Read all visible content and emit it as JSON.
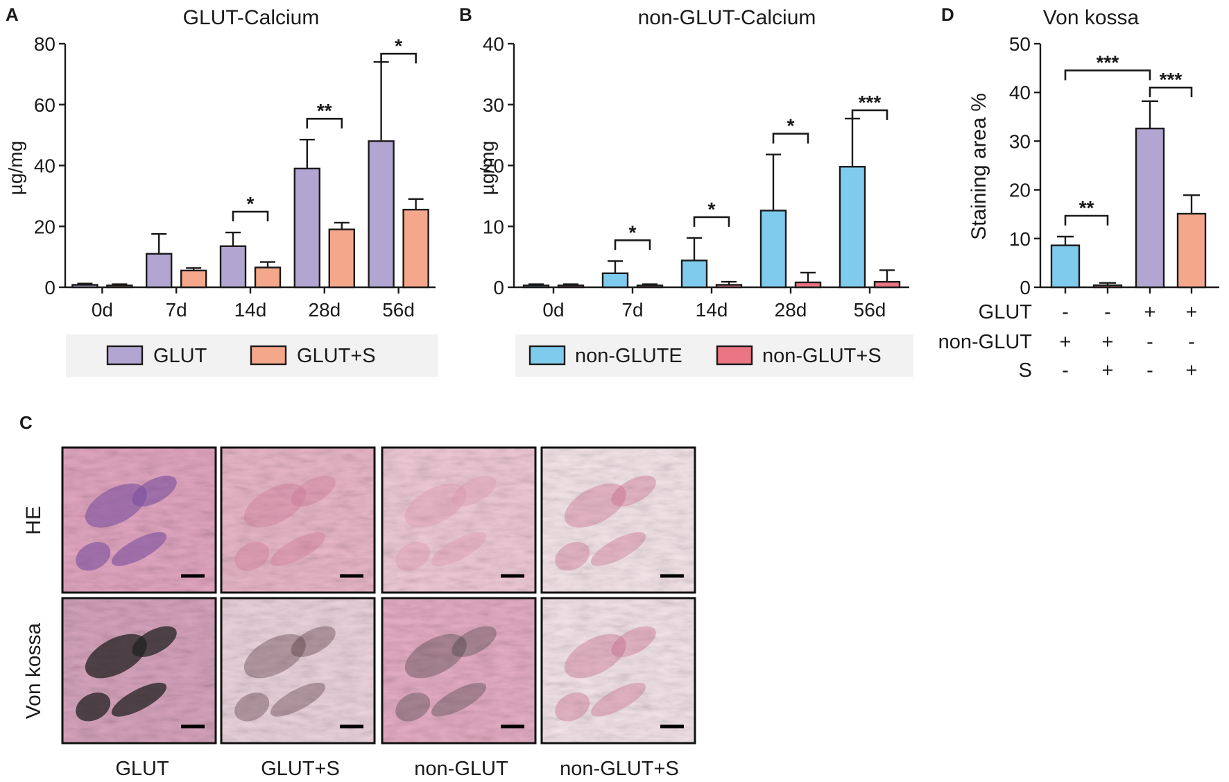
{
  "panel_letters": {
    "a": "A",
    "b": "B",
    "c": "C",
    "d": "D"
  },
  "chart_data": [
    {
      "id": "A",
      "type": "bar",
      "title": "GLUT-Calcium",
      "ylabel": "µg/mg",
      "ylim": [
        0,
        80
      ],
      "yticks": [
        "0",
        "20",
        "40",
        "60",
        "80"
      ],
      "categories": [
        "0d",
        "7d",
        "14d",
        "28d",
        "56d"
      ],
      "series": [
        {
          "name": "GLUT",
          "color": "#b3a5d1",
          "values": [
            0.8,
            11,
            13.5,
            39,
            48
          ],
          "errors": [
            0.4,
            6.5,
            4.5,
            9.5,
            26
          ]
        },
        {
          "name": "GLUT+S",
          "color": "#f4a78b",
          "values": [
            0.6,
            5.5,
            6.5,
            19,
            25.5
          ],
          "errors": [
            0.4,
            0.8,
            1.8,
            2.2,
            3.5
          ]
        }
      ],
      "significance": [
        {
          "category": "14d",
          "label": "*"
        },
        {
          "category": "28d",
          "label": "**"
        },
        {
          "category": "56d",
          "label": "*"
        }
      ],
      "legend": {
        "position": "bottom",
        "items": [
          "GLUT",
          "GLUT+S"
        ]
      }
    },
    {
      "id": "B",
      "type": "bar",
      "title": "non-GLUT-Calcium",
      "ylabel": "µg/mg",
      "ylim": [
        0,
        40
      ],
      "yticks": [
        "0",
        "10",
        "20",
        "30",
        "40"
      ],
      "categories": [
        "0d",
        "7d",
        "14d",
        "28d",
        "56d"
      ],
      "series": [
        {
          "name": "non-GLUTE",
          "color": "#7ecbee",
          "values": [
            0.3,
            2.3,
            4.4,
            12.6,
            19.8
          ],
          "errors": [
            0.2,
            2.0,
            3.7,
            9.2,
            7.9
          ]
        },
        {
          "name": "non-GLUT+S",
          "color": "#ea7583",
          "values": [
            0.3,
            0.3,
            0.4,
            0.8,
            0.9
          ],
          "errors": [
            0.2,
            0.2,
            0.5,
            1.6,
            1.9
          ]
        }
      ],
      "significance": [
        {
          "category": "7d",
          "label": "*"
        },
        {
          "category": "14d",
          "label": "*"
        },
        {
          "category": "28d",
          "label": "*"
        },
        {
          "category": "56d",
          "label": "***"
        }
      ],
      "legend": {
        "position": "bottom",
        "items": [
          "non-GLUTE",
          "non-GLUT+S"
        ]
      }
    },
    {
      "id": "D",
      "type": "bar",
      "title": "Von kossa",
      "ylabel": "Staining area %",
      "ylim": [
        0,
        50
      ],
      "yticks": [
        "0",
        "10",
        "20",
        "30",
        "40",
        "50"
      ],
      "bars": [
        {
          "value": 8.6,
          "error": 1.8,
          "color": "#7ecbee"
        },
        {
          "value": 0.4,
          "error": 0.5,
          "color": "#ea7583"
        },
        {
          "value": 32.6,
          "error": 5.6,
          "color": "#b3a5d1"
        },
        {
          "value": 15.1,
          "error": 3.8,
          "color": "#f4a78b"
        }
      ],
      "factor_rows": [
        {
          "label": "GLUT",
          "signs": [
            "-",
            "-",
            "+",
            "+"
          ]
        },
        {
          "label": "non-GLUT",
          "signs": [
            "+",
            "+",
            "-",
            "-"
          ]
        },
        {
          "label": "S",
          "signs": [
            "-",
            "+",
            "-",
            "+"
          ]
        }
      ],
      "significance": [
        {
          "from": 0,
          "to": 1,
          "label": "**"
        },
        {
          "from": 0,
          "to": 2,
          "label": "***"
        },
        {
          "from": 2,
          "to": 3,
          "label": "***"
        }
      ]
    }
  ],
  "micrographs": {
    "row_labels": [
      "HE",
      "Von kossa"
    ],
    "column_labels": [
      "GLUT",
      "GLUT+S",
      "non-GLUT",
      "non-GLUT+S"
    ],
    "panels": [
      {
        "row": "HE",
        "column": "GLUT",
        "base": "#e3a7c1",
        "accent": "#7a4f9e"
      },
      {
        "row": "HE",
        "column": "GLUT+S",
        "base": "#eab8c9",
        "accent": "#c96f90"
      },
      {
        "row": "HE",
        "column": "non-GLUT",
        "base": "#f0cbd7",
        "accent": "#d78ea9"
      },
      {
        "row": "HE",
        "column": "non-GLUT+S",
        "base": "#f5e6ea",
        "accent": "#c45b80"
      },
      {
        "row": "Von kossa",
        "column": "GLUT",
        "base": "#d7a4bd",
        "accent": "#222222"
      },
      {
        "row": "Von kossa",
        "column": "GLUT+S",
        "base": "#ecd4de",
        "accent": "#4a2a30"
      },
      {
        "row": "Von kossa",
        "column": "non-GLUT",
        "base": "#e6aec4",
        "accent": "#3a3a3a"
      },
      {
        "row": "Von kossa",
        "column": "non-GLUT+S",
        "base": "#f4e5ea",
        "accent": "#c05a7e"
      }
    ]
  }
}
